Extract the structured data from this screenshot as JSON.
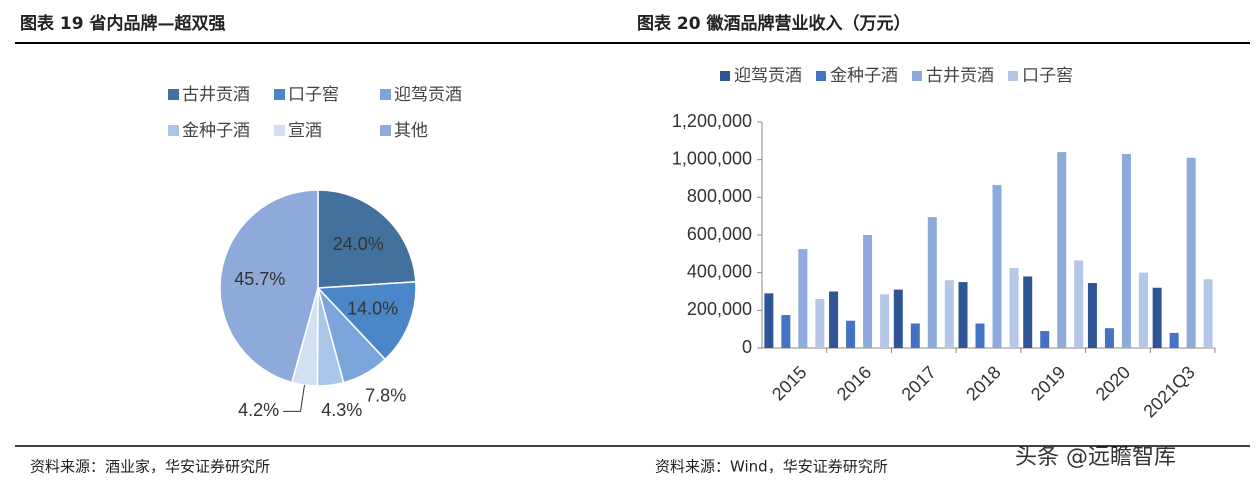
{
  "header": {
    "left_title": "图表 19  省内品牌—超双强",
    "right_title": "图表 20  徽酒品牌营业收入（万元）"
  },
  "footer": {
    "left_source": "资料来源：酒业家，华安证券研究所",
    "right_source": "资料来源：Wind，华安证券研究所",
    "watermark": "头条 @远瞻智库"
  },
  "chart_data": [
    {
      "type": "pie",
      "categories": [
        "古井贡酒",
        "口子窖",
        "迎驾贡酒",
        "金种子酒",
        "宣酒",
        "其他"
      ],
      "values": [
        24.0,
        14.0,
        7.8,
        4.3,
        4.2,
        45.7
      ],
      "value_labels": [
        "24.0%",
        "14.0%",
        "7.8%",
        "4.3%",
        "4.2%",
        "45.7%"
      ],
      "colors": [
        "#41719c",
        "#4a86c8",
        "#7aa6dc",
        "#a9c6e8",
        "#d3e0f2",
        "#8eaadb"
      ]
    },
    {
      "type": "bar",
      "categories": [
        "2015",
        "2016",
        "2017",
        "2018",
        "2019",
        "2020",
        "2021Q3"
      ],
      "series": [
        {
          "name": "迎驾贡酒",
          "color": "#2f5597",
          "values": [
            290000,
            300000,
            310000,
            350000,
            380000,
            345000,
            320000
          ]
        },
        {
          "name": "金种子酒",
          "color": "#4472c4",
          "values": [
            175000,
            145000,
            130000,
            130000,
            90000,
            105000,
            80000
          ]
        },
        {
          "name": "古井贡酒",
          "color": "#8ea9db",
          "values": [
            525000,
            600000,
            695000,
            865000,
            1040000,
            1030000,
            1010000
          ]
        },
        {
          "name": "口子窖",
          "color": "#b4c7e7",
          "values": [
            260000,
            285000,
            360000,
            425000,
            465000,
            400000,
            365000
          ]
        }
      ],
      "ylim": [
        0,
        1200000
      ],
      "yticks": [
        0,
        {
          "value": 200000,
          "label": "200,000"
        },
        {
          "value": 400000,
          "label": "400,000"
        },
        {
          "value": 600000,
          "label": "600,000"
        },
        {
          "value": 800000,
          "label": "800,000"
        },
        {
          "value": 1000000,
          "label": "1,000,000"
        },
        {
          "value": 1200000,
          "label": "1,200,000"
        }
      ]
    }
  ]
}
